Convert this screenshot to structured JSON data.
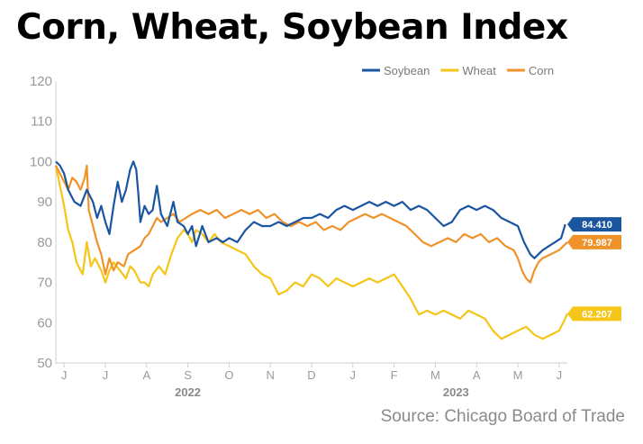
{
  "header": {
    "title": "Corn, Wheat, Soybean Index"
  },
  "footer": {
    "source": "Source: Chicago Board of Trade"
  },
  "chart_data": {
    "type": "line",
    "title": "Corn, Wheat, Soybean Index",
    "ylim": [
      50,
      120
    ],
    "yticks": [
      50,
      60,
      70,
      80,
      90,
      100,
      110,
      120
    ],
    "x_month_ticks": [
      {
        "label": "J",
        "index": 0
      },
      {
        "label": "J",
        "index": 1
      },
      {
        "label": "A",
        "index": 2
      },
      {
        "label": "S",
        "index": 3
      },
      {
        "label": "O",
        "index": 4
      },
      {
        "label": "N",
        "index": 5
      },
      {
        "label": "D",
        "index": 6
      },
      {
        "label": "J",
        "index": 7
      },
      {
        "label": "F",
        "index": 8
      },
      {
        "label": "M",
        "index": 9
      },
      {
        "label": "A",
        "index": 10
      },
      {
        "label": "M",
        "index": 11
      },
      {
        "label": "J",
        "index": 12
      }
    ],
    "year_labels": [
      {
        "label": "2022",
        "month_index": 3
      },
      {
        "label": "2023",
        "month_index": 9.5
      }
    ],
    "x_month_range": [
      -0.2,
      12.2
    ],
    "legend": {
      "position": "top-right"
    },
    "grid": false,
    "series": [
      {
        "name": "Soybean",
        "color": "#1a56a0",
        "end_label": "84.410",
        "points": [
          [
            -0.2,
            100
          ],
          [
            -0.1,
            99
          ],
          [
            0,
            97
          ],
          [
            0.1,
            93
          ],
          [
            0.25,
            90
          ],
          [
            0.4,
            89
          ],
          [
            0.55,
            93
          ],
          [
            0.7,
            90
          ],
          [
            0.8,
            86
          ],
          [
            0.9,
            89
          ],
          [
            1.0,
            85
          ],
          [
            1.1,
            82
          ],
          [
            1.2,
            89
          ],
          [
            1.3,
            95
          ],
          [
            1.4,
            90
          ],
          [
            1.5,
            93
          ],
          [
            1.6,
            98
          ],
          [
            1.68,
            100
          ],
          [
            1.75,
            98
          ],
          [
            1.8,
            92
          ],
          [
            1.85,
            85
          ],
          [
            1.95,
            89
          ],
          [
            2.05,
            87
          ],
          [
            2.15,
            88
          ],
          [
            2.25,
            94
          ],
          [
            2.35,
            87
          ],
          [
            2.5,
            84
          ],
          [
            2.65,
            90
          ],
          [
            2.75,
            85
          ],
          [
            2.9,
            84
          ],
          [
            3.0,
            82
          ],
          [
            3.1,
            84
          ],
          [
            3.2,
            79
          ],
          [
            3.35,
            84
          ],
          [
            3.5,
            80
          ],
          [
            3.7,
            81
          ],
          [
            3.85,
            80
          ],
          [
            4.0,
            81
          ],
          [
            4.2,
            80
          ],
          [
            4.4,
            83
          ],
          [
            4.6,
            85
          ],
          [
            4.8,
            84
          ],
          [
            5.0,
            84
          ],
          [
            5.2,
            85
          ],
          [
            5.4,
            84
          ],
          [
            5.6,
            85
          ],
          [
            5.8,
            86
          ],
          [
            6.0,
            86
          ],
          [
            6.2,
            87
          ],
          [
            6.4,
            86
          ],
          [
            6.6,
            88
          ],
          [
            6.8,
            89
          ],
          [
            7.0,
            88
          ],
          [
            7.2,
            89
          ],
          [
            7.4,
            90
          ],
          [
            7.6,
            89
          ],
          [
            7.8,
            90
          ],
          [
            8.0,
            89
          ],
          [
            8.2,
            90
          ],
          [
            8.4,
            88
          ],
          [
            8.6,
            89
          ],
          [
            8.8,
            88
          ],
          [
            9.0,
            86
          ],
          [
            9.2,
            84
          ],
          [
            9.4,
            85
          ],
          [
            9.6,
            88
          ],
          [
            9.8,
            89
          ],
          [
            10.0,
            88
          ],
          [
            10.2,
            89
          ],
          [
            10.4,
            88
          ],
          [
            10.6,
            86
          ],
          [
            10.8,
            85
          ],
          [
            11.0,
            84
          ],
          [
            11.15,
            80
          ],
          [
            11.3,
            77
          ],
          [
            11.4,
            76
          ],
          [
            11.5,
            77
          ],
          [
            11.6,
            78
          ],
          [
            11.75,
            79
          ],
          [
            11.9,
            80
          ],
          [
            12.05,
            81
          ],
          [
            12.15,
            84.41
          ]
        ]
      },
      {
        "name": "Wheat",
        "color": "#f5c518",
        "end_label": "62.207",
        "points": [
          [
            -0.2,
            99
          ],
          [
            -0.1,
            94
          ],
          [
            0,
            89
          ],
          [
            0.1,
            83
          ],
          [
            0.2,
            80
          ],
          [
            0.3,
            75
          ],
          [
            0.45,
            72
          ],
          [
            0.55,
            80
          ],
          [
            0.65,
            74
          ],
          [
            0.75,
            76
          ],
          [
            0.9,
            73
          ],
          [
            1.0,
            70
          ],
          [
            1.1,
            73
          ],
          [
            1.2,
            75
          ],
          [
            1.35,
            73
          ],
          [
            1.5,
            71
          ],
          [
            1.6,
            74
          ],
          [
            1.7,
            73
          ],
          [
            1.85,
            70
          ],
          [
            1.95,
            70
          ],
          [
            2.05,
            69
          ],
          [
            2.15,
            72
          ],
          [
            2.3,
            74
          ],
          [
            2.45,
            72
          ],
          [
            2.6,
            77
          ],
          [
            2.75,
            81
          ],
          [
            2.9,
            83
          ],
          [
            3.0,
            82
          ],
          [
            3.1,
            80
          ],
          [
            3.2,
            83
          ],
          [
            3.35,
            82
          ],
          [
            3.5,
            80
          ],
          [
            3.65,
            82
          ],
          [
            3.8,
            80
          ],
          [
            4.0,
            79
          ],
          [
            4.2,
            78
          ],
          [
            4.4,
            77
          ],
          [
            4.6,
            74
          ],
          [
            4.8,
            72
          ],
          [
            5.0,
            71
          ],
          [
            5.2,
            67
          ],
          [
            5.4,
            68
          ],
          [
            5.6,
            70
          ],
          [
            5.8,
            69
          ],
          [
            6.0,
            72
          ],
          [
            6.2,
            71
          ],
          [
            6.4,
            69
          ],
          [
            6.6,
            71
          ],
          [
            6.8,
            70
          ],
          [
            7.0,
            69
          ],
          [
            7.2,
            70
          ],
          [
            7.4,
            71
          ],
          [
            7.6,
            70
          ],
          [
            7.8,
            71
          ],
          [
            8.0,
            72
          ],
          [
            8.2,
            69
          ],
          [
            8.4,
            66
          ],
          [
            8.6,
            62
          ],
          [
            8.8,
            63
          ],
          [
            9.0,
            62
          ],
          [
            9.2,
            63
          ],
          [
            9.4,
            62
          ],
          [
            9.6,
            61
          ],
          [
            9.8,
            63
          ],
          [
            10.0,
            62
          ],
          [
            10.2,
            61
          ],
          [
            10.4,
            58
          ],
          [
            10.6,
            56
          ],
          [
            10.8,
            57
          ],
          [
            11.0,
            58
          ],
          [
            11.2,
            59
          ],
          [
            11.4,
            57
          ],
          [
            11.6,
            56
          ],
          [
            11.8,
            57
          ],
          [
            12.0,
            58
          ],
          [
            12.1,
            60
          ],
          [
            12.2,
            62.207
          ]
        ]
      },
      {
        "name": "Corn",
        "color": "#f0922a",
        "end_label": "79.987",
        "points": [
          [
            -0.2,
            99
          ],
          [
            -0.1,
            97
          ],
          [
            0,
            95
          ],
          [
            0.1,
            93
          ],
          [
            0.2,
            96
          ],
          [
            0.3,
            95
          ],
          [
            0.4,
            93
          ],
          [
            0.5,
            96
          ],
          [
            0.55,
            99
          ],
          [
            0.6,
            88
          ],
          [
            0.7,
            84
          ],
          [
            0.8,
            80
          ],
          [
            0.9,
            77
          ],
          [
            1.0,
            72
          ],
          [
            1.1,
            76
          ],
          [
            1.2,
            73
          ],
          [
            1.3,
            75
          ],
          [
            1.45,
            74
          ],
          [
            1.55,
            77
          ],
          [
            1.7,
            78
          ],
          [
            1.85,
            79
          ],
          [
            1.95,
            81
          ],
          [
            2.05,
            82
          ],
          [
            2.15,
            84
          ],
          [
            2.25,
            86
          ],
          [
            2.35,
            85
          ],
          [
            2.5,
            86
          ],
          [
            2.65,
            87
          ],
          [
            2.8,
            85
          ],
          [
            2.95,
            86
          ],
          [
            3.1,
            87
          ],
          [
            3.3,
            88
          ],
          [
            3.5,
            87
          ],
          [
            3.7,
            88
          ],
          [
            3.9,
            86
          ],
          [
            4.1,
            87
          ],
          [
            4.3,
            88
          ],
          [
            4.5,
            87
          ],
          [
            4.7,
            88
          ],
          [
            4.9,
            86
          ],
          [
            5.1,
            87
          ],
          [
            5.3,
            85
          ],
          [
            5.5,
            84
          ],
          [
            5.7,
            85
          ],
          [
            5.9,
            84
          ],
          [
            6.1,
            85
          ],
          [
            6.3,
            83
          ],
          [
            6.5,
            84
          ],
          [
            6.7,
            83
          ],
          [
            6.9,
            85
          ],
          [
            7.1,
            86
          ],
          [
            7.3,
            87
          ],
          [
            7.5,
            86
          ],
          [
            7.7,
            87
          ],
          [
            7.9,
            86
          ],
          [
            8.1,
            85
          ],
          [
            8.3,
            84
          ],
          [
            8.5,
            82
          ],
          [
            8.7,
            80
          ],
          [
            8.9,
            79
          ],
          [
            9.1,
            80
          ],
          [
            9.3,
            81
          ],
          [
            9.5,
            80
          ],
          [
            9.7,
            82
          ],
          [
            9.9,
            81
          ],
          [
            10.1,
            82
          ],
          [
            10.3,
            80
          ],
          [
            10.5,
            81
          ],
          [
            10.7,
            79
          ],
          [
            10.9,
            78
          ],
          [
            11.0,
            76
          ],
          [
            11.1,
            73
          ],
          [
            11.2,
            71
          ],
          [
            11.3,
            70
          ],
          [
            11.4,
            73
          ],
          [
            11.5,
            75
          ],
          [
            11.6,
            76
          ],
          [
            11.8,
            77
          ],
          [
            12.0,
            78
          ],
          [
            12.2,
            79.987
          ]
        ]
      }
    ]
  }
}
